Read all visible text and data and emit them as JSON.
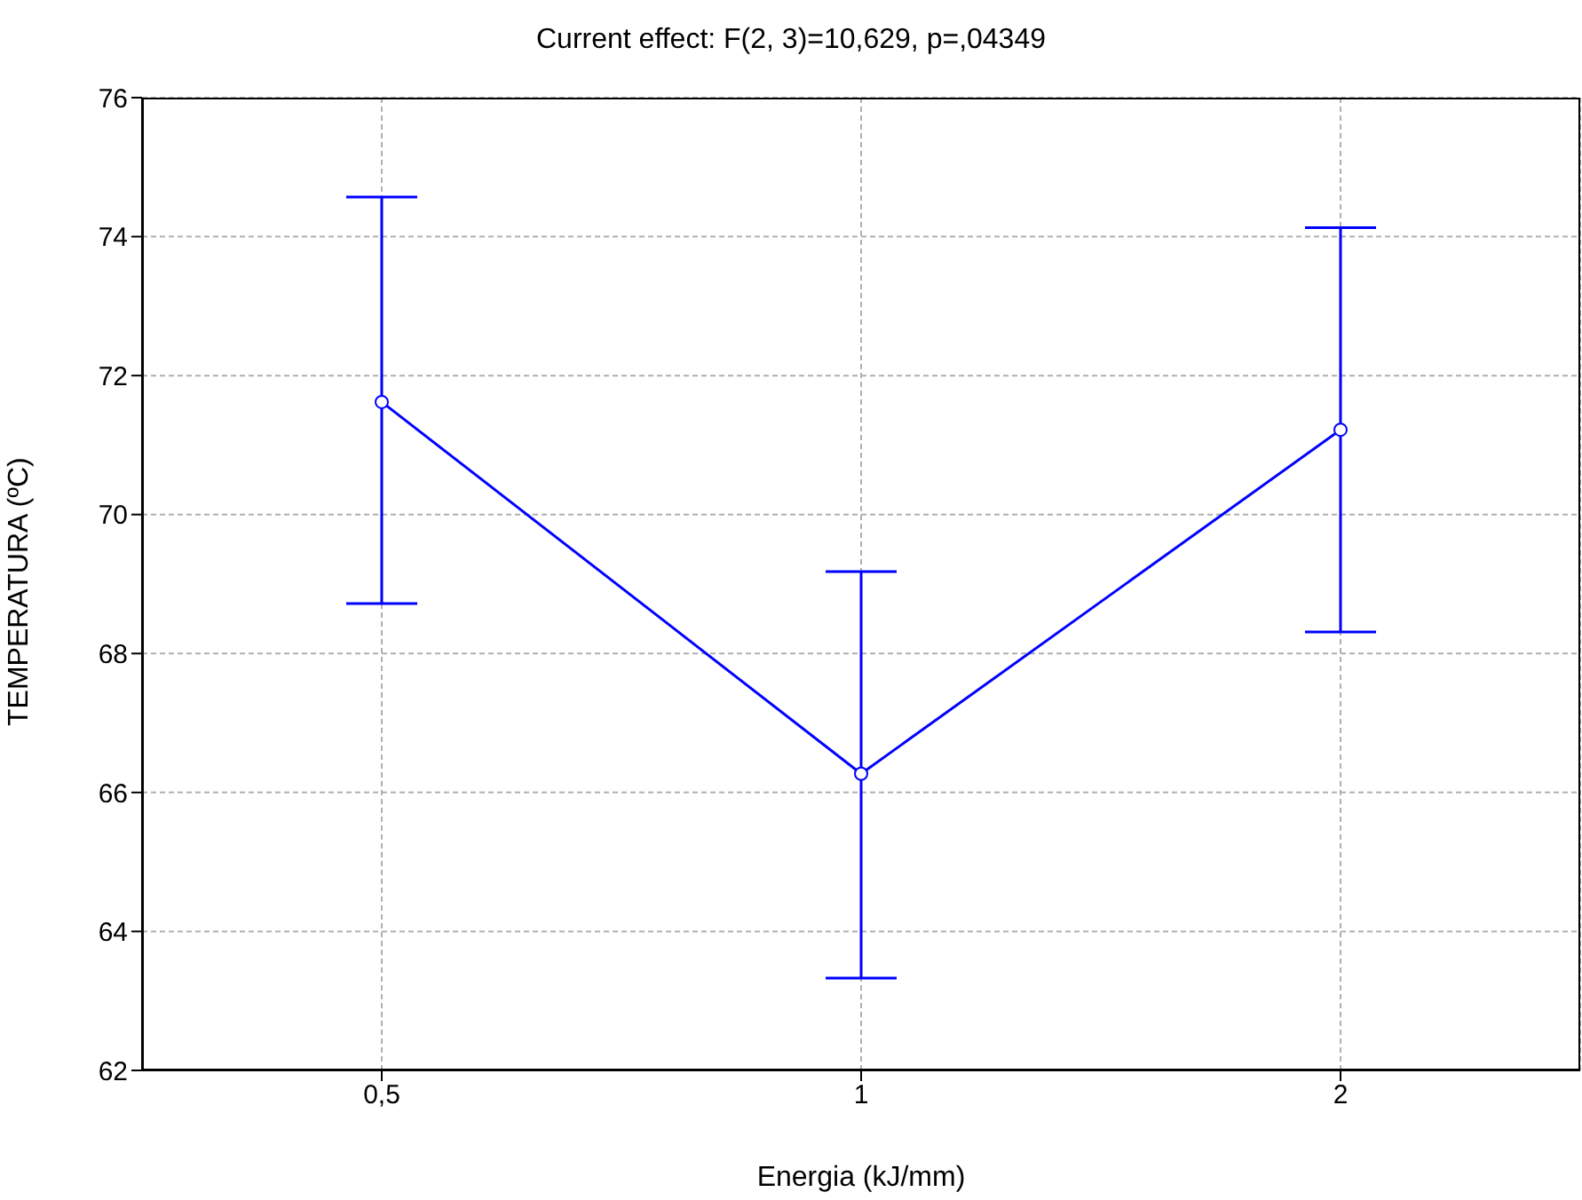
{
  "chart_data": {
    "type": "line",
    "title": "Current effect: F(2, 3)=10,629, p=,04349",
    "xlabel": "Energia (kJ/mm)",
    "ylabel": "TEMPERATURA (ºC)",
    "categories": [
      "0,5",
      "1",
      "2"
    ],
    "values": [
      71.62,
      66.27,
      71.22
    ],
    "color": "#0000ff",
    "errors": [
      [
        68.72,
        74.57
      ],
      [
        63.33,
        69.18
      ],
      [
        68.31,
        74.13
      ]
    ],
    "ylim": [
      62,
      76
    ],
    "yticks": [
      62,
      64,
      66,
      68,
      70,
      72,
      74,
      76
    ],
    "grid": true,
    "marker": "circle",
    "line_style": "solid"
  }
}
